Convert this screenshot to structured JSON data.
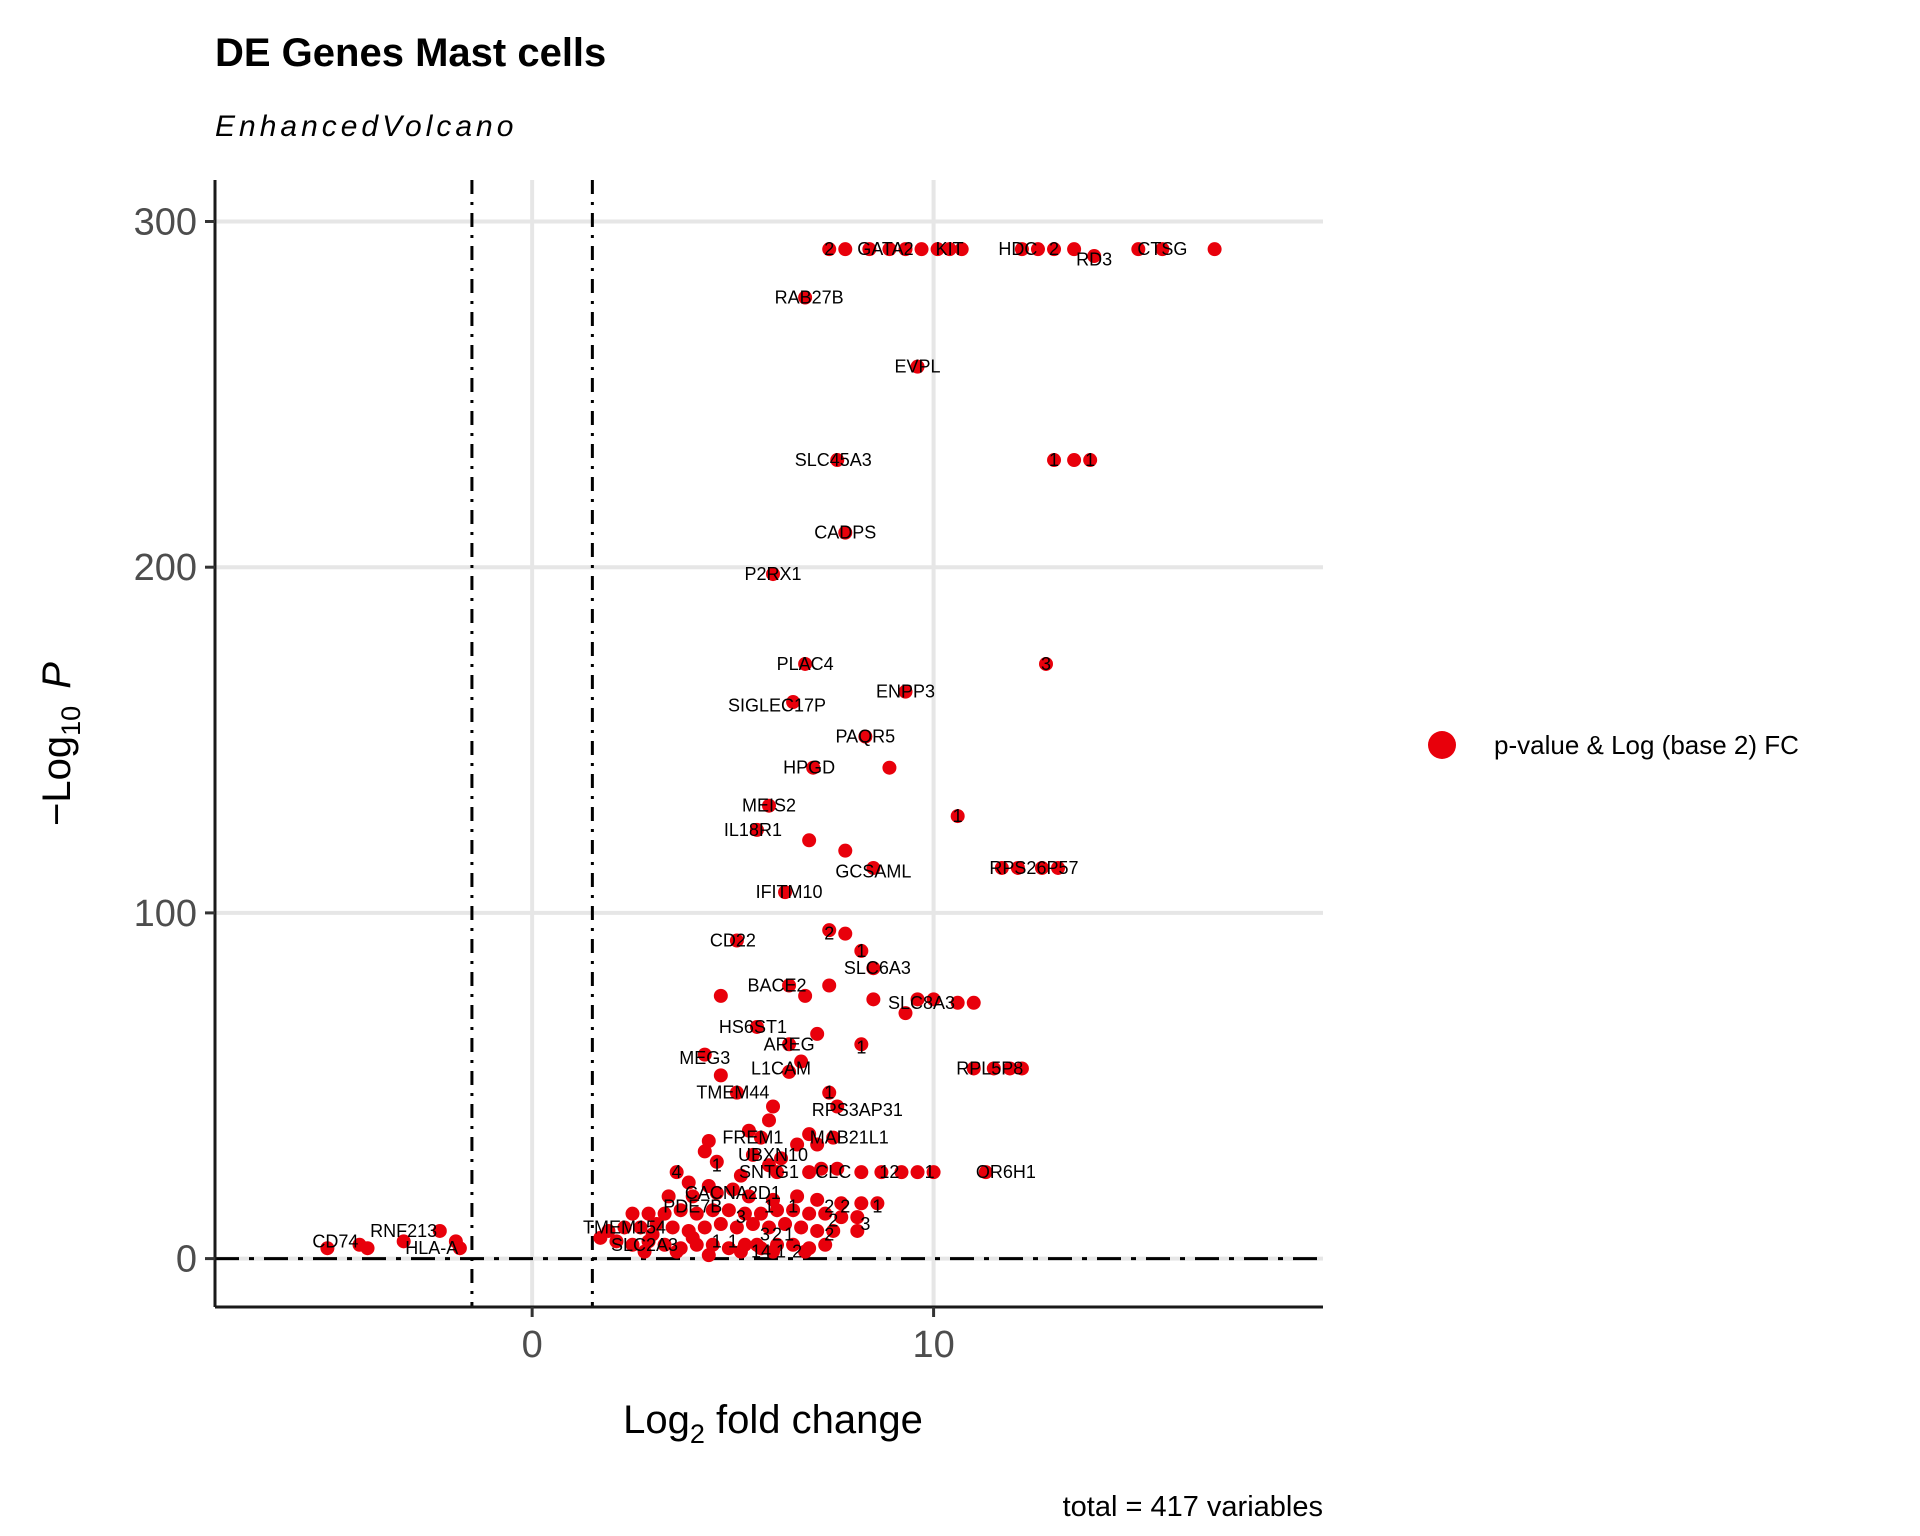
{
  "chart_data": {
    "type": "scatter",
    "title": "DE Genes Mast cells",
    "subtitle": "EnhancedVolcano",
    "xlabel_prefix": "Log",
    "xlabel_sub": "2",
    "xlabel_suffix": " fold change",
    "ylabel_prefix": "−Log",
    "ylabel_sub": "10",
    "ylabel_suffix": "P",
    "caption": "total = 417 variables",
    "xlim": [
      -7.9,
      19.7
    ],
    "ylim": [
      -14,
      312
    ],
    "x_ticks": [
      0,
      10
    ],
    "y_ticks": [
      0,
      100,
      200,
      300
    ],
    "fc_cutoff": 1.5,
    "p_cutoff_log10": 0,
    "grid": true,
    "legend_position": "right",
    "legend": [
      {
        "label": "p-value & Log (base 2) FC",
        "color": "#e8000b"
      }
    ],
    "series": [
      {
        "name": "p-value & Log (base 2) FC",
        "color": "#e8000b",
        "points": [
          [
            7.4,
            292
          ],
          [
            7.8,
            292
          ],
          [
            8.4,
            292
          ],
          [
            8.9,
            292
          ],
          [
            9.3,
            292
          ],
          [
            9.7,
            292
          ],
          [
            10.1,
            292
          ],
          [
            10.4,
            292
          ],
          [
            10.7,
            292
          ],
          [
            12.2,
            292
          ],
          [
            12.6,
            292
          ],
          [
            13.0,
            292
          ],
          [
            13.5,
            292
          ],
          [
            14.0,
            290
          ],
          [
            15.1,
            292
          ],
          [
            15.7,
            292
          ],
          [
            17.0,
            292
          ],
          [
            6.8,
            278
          ],
          [
            9.6,
            258
          ],
          [
            7.6,
            231
          ],
          [
            13.0,
            231
          ],
          [
            13.5,
            231
          ],
          [
            13.9,
            231
          ],
          [
            7.8,
            210
          ],
          [
            6.0,
            198
          ],
          [
            6.8,
            172
          ],
          [
            12.8,
            172
          ],
          [
            9.3,
            164
          ],
          [
            6.5,
            161
          ],
          [
            8.3,
            151
          ],
          [
            7.0,
            142
          ],
          [
            8.9,
            142
          ],
          [
            5.9,
            131
          ],
          [
            10.6,
            128
          ],
          [
            5.6,
            124
          ],
          [
            6.9,
            121
          ],
          [
            7.8,
            118
          ],
          [
            8.5,
            113
          ],
          [
            11.7,
            113
          ],
          [
            12.1,
            113
          ],
          [
            12.7,
            113
          ],
          [
            13.1,
            113
          ],
          [
            6.3,
            106
          ],
          [
            5.1,
            92
          ],
          [
            7.4,
            95
          ],
          [
            7.8,
            94
          ],
          [
            8.2,
            89
          ],
          [
            8.5,
            84
          ],
          [
            6.4,
            79
          ],
          [
            7.4,
            79
          ],
          [
            4.7,
            76
          ],
          [
            6.8,
            76
          ],
          [
            8.5,
            75
          ],
          [
            9.6,
            75
          ],
          [
            10.0,
            75
          ],
          [
            10.6,
            74
          ],
          [
            11.0,
            74
          ],
          [
            9.3,
            71
          ],
          [
            5.6,
            67
          ],
          [
            7.1,
            65
          ],
          [
            6.4,
            62
          ],
          [
            8.2,
            62
          ],
          [
            4.3,
            59
          ],
          [
            6.7,
            57
          ],
          [
            6.4,
            54
          ],
          [
            4.7,
            53
          ],
          [
            11.0,
            55
          ],
          [
            11.5,
            55
          ],
          [
            11.9,
            55
          ],
          [
            12.2,
            55
          ],
          [
            5.1,
            48
          ],
          [
            7.4,
            48
          ],
          [
            6.0,
            44
          ],
          [
            7.6,
            44
          ],
          [
            5.9,
            40
          ],
          [
            5.4,
            37
          ],
          [
            5.7,
            35
          ],
          [
            6.9,
            36
          ],
          [
            7.5,
            35
          ],
          [
            4.4,
            34
          ],
          [
            6.6,
            33
          ],
          [
            7.1,
            33
          ],
          [
            4.3,
            31
          ],
          [
            5.5,
            30
          ],
          [
            6.2,
            29
          ],
          [
            4.6,
            28
          ],
          [
            5.9,
            27
          ],
          [
            7.2,
            26
          ],
          [
            7.6,
            26
          ],
          [
            3.6,
            25
          ],
          [
            5.2,
            24
          ],
          [
            6.1,
            25
          ],
          [
            6.9,
            25
          ],
          [
            8.2,
            25
          ],
          [
            8.7,
            25
          ],
          [
            9.2,
            25
          ],
          [
            9.6,
            25
          ],
          [
            10.0,
            25
          ],
          [
            11.3,
            25
          ],
          [
            3.9,
            22
          ],
          [
            4.4,
            21
          ],
          [
            5.0,
            20
          ],
          [
            3.4,
            18
          ],
          [
            4.0,
            18
          ],
          [
            4.6,
            19
          ],
          [
            5.4,
            18
          ],
          [
            6.0,
            17
          ],
          [
            6.6,
            18
          ],
          [
            7.1,
            17
          ],
          [
            7.7,
            16
          ],
          [
            8.2,
            16
          ],
          [
            8.6,
            16
          ],
          [
            2.5,
            13
          ],
          [
            2.9,
            13
          ],
          [
            3.3,
            13
          ],
          [
            3.7,
            14
          ],
          [
            4.1,
            13
          ],
          [
            4.5,
            14
          ],
          [
            4.9,
            14
          ],
          [
            5.3,
            13
          ],
          [
            5.7,
            13
          ],
          [
            6.1,
            14
          ],
          [
            6.5,
            14
          ],
          [
            6.9,
            13
          ],
          [
            7.3,
            13
          ],
          [
            7.7,
            12
          ],
          [
            8.1,
            12
          ],
          [
            1.9,
            8
          ],
          [
            2.3,
            9
          ],
          [
            2.7,
            9
          ],
          [
            3.1,
            10
          ],
          [
            3.5,
            9
          ],
          [
            3.9,
            8
          ],
          [
            4.3,
            9
          ],
          [
            4.7,
            10
          ],
          [
            5.1,
            9
          ],
          [
            5.5,
            10
          ],
          [
            5.9,
            9
          ],
          [
            6.3,
            10
          ],
          [
            6.7,
            9
          ],
          [
            7.1,
            8
          ],
          [
            7.5,
            8
          ],
          [
            8.1,
            8
          ],
          [
            1.7,
            6
          ],
          [
            2.1,
            5
          ],
          [
            2.5,
            4
          ],
          [
            2.9,
            5
          ],
          [
            3.3,
            4
          ],
          [
            3.7,
            3
          ],
          [
            4.1,
            4
          ],
          [
            4.5,
            4
          ],
          [
            4.9,
            3
          ],
          [
            5.3,
            4
          ],
          [
            5.7,
            3
          ],
          [
            6.1,
            4
          ],
          [
            6.5,
            4
          ],
          [
            6.9,
            3
          ],
          [
            7.3,
            4
          ],
          [
            2.8,
            2
          ],
          [
            3.6,
            2
          ],
          [
            4.4,
            1
          ],
          [
            5.2,
            2
          ],
          [
            6.0,
            2
          ],
          [
            6.8,
            2
          ],
          [
            5.6,
            4
          ],
          [
            4.0,
            6
          ],
          [
            3.0,
            7
          ],
          [
            -5.1,
            3
          ],
          [
            -4.3,
            4
          ],
          [
            -4.1,
            3
          ],
          [
            -3.2,
            5
          ],
          [
            -2.3,
            8
          ],
          [
            -1.9,
            5
          ],
          [
            -1.8,
            3
          ]
        ]
      }
    ],
    "labels": [
      {
        "text": "2",
        "x": 7.4,
        "y": 292
      },
      {
        "text": "GATA2",
        "x": 8.8,
        "y": 292
      },
      {
        "text": "KIT",
        "x": 10.4,
        "y": 292
      },
      {
        "text": "HDC",
        "x": 12.1,
        "y": 292
      },
      {
        "text": "2",
        "x": 13.0,
        "y": 292
      },
      {
        "text": "RD3",
        "x": 14.0,
        "y": 289
      },
      {
        "text": "CTSG",
        "x": 15.7,
        "y": 292
      },
      {
        "text": "RAB27B",
        "x": 6.9,
        "y": 278
      },
      {
        "text": "EVPL",
        "x": 9.6,
        "y": 258
      },
      {
        "text": "SLC45A3",
        "x": 7.5,
        "y": 231
      },
      {
        "text": "1",
        "x": 13.0,
        "y": 231
      },
      {
        "text": "1",
        "x": 13.9,
        "y": 231
      },
      {
        "text": "CADPS",
        "x": 7.8,
        "y": 210
      },
      {
        "text": "P2RX1",
        "x": 6.0,
        "y": 198
      },
      {
        "text": "PLAC4",
        "x": 6.8,
        "y": 172
      },
      {
        "text": "3",
        "x": 12.8,
        "y": 172
      },
      {
        "text": "ENPP3",
        "x": 9.3,
        "y": 164
      },
      {
        "text": "SIGLEC17P",
        "x": 6.1,
        "y": 160
      },
      {
        "text": "PAQR5",
        "x": 8.3,
        "y": 151
      },
      {
        "text": "HPGD",
        "x": 6.9,
        "y": 142
      },
      {
        "text": "MEIS2",
        "x": 5.9,
        "y": 131
      },
      {
        "text": "1",
        "x": 10.6,
        "y": 128
      },
      {
        "text": "IL18R1",
        "x": 5.5,
        "y": 124
      },
      {
        "text": "GCSAML",
        "x": 8.5,
        "y": 112
      },
      {
        "text": "RPS26P57",
        "x": 12.5,
        "y": 113
      },
      {
        "text": "IFITM10",
        "x": 6.4,
        "y": 106
      },
      {
        "text": "CD22",
        "x": 5.0,
        "y": 92
      },
      {
        "text": "2",
        "x": 7.4,
        "y": 94
      },
      {
        "text": "1",
        "x": 8.2,
        "y": 89
      },
      {
        "text": "SLC6A3",
        "x": 8.6,
        "y": 84
      },
      {
        "text": "BACE2",
        "x": 6.1,
        "y": 79
      },
      {
        "text": "SLC8A3",
        "x": 9.7,
        "y": 74
      },
      {
        "text": "HS6ST1",
        "x": 5.5,
        "y": 67
      },
      {
        "text": "AREG",
        "x": 6.4,
        "y": 62
      },
      {
        "text": "1",
        "x": 8.2,
        "y": 61
      },
      {
        "text": "MEG3",
        "x": 4.3,
        "y": 58
      },
      {
        "text": "L1CAM",
        "x": 6.2,
        "y": 55
      },
      {
        "text": "RPL5P8",
        "x": 11.4,
        "y": 55
      },
      {
        "text": "TMEM44",
        "x": 5.0,
        "y": 48
      },
      {
        "text": "1",
        "x": 7.4,
        "y": 48
      },
      {
        "text": "RPS3AP31",
        "x": 8.1,
        "y": 43
      },
      {
        "text": "FREM1",
        "x": 5.5,
        "y": 35
      },
      {
        "text": "MAB21L1",
        "x": 7.9,
        "y": 35
      },
      {
        "text": "UBXN10",
        "x": 6.0,
        "y": 30
      },
      {
        "text": "1",
        "x": 4.6,
        "y": 27
      },
      {
        "text": "4",
        "x": 3.6,
        "y": 25
      },
      {
        "text": "SNTG1",
        "x": 5.9,
        "y": 25
      },
      {
        "text": "CLC",
        "x": 7.5,
        "y": 25
      },
      {
        "text": "12",
        "x": 8.9,
        "y": 25
      },
      {
        "text": "1",
        "x": 9.9,
        "y": 25
      },
      {
        "text": "OR6H1",
        "x": 11.8,
        "y": 25
      },
      {
        "text": "CACNA2D1",
        "x": 5.0,
        "y": 19
      },
      {
        "text": "PDE7B",
        "x": 4.0,
        "y": 15
      },
      {
        "text": "1",
        "x": 5.9,
        "y": 15
      },
      {
        "text": "1",
        "x": 6.5,
        "y": 15
      },
      {
        "text": "2",
        "x": 7.4,
        "y": 15
      },
      {
        "text": "2",
        "x": 7.8,
        "y": 15
      },
      {
        "text": "1",
        "x": 8.6,
        "y": 15
      },
      {
        "text": "3",
        "x": 5.2,
        "y": 12
      },
      {
        "text": "2",
        "x": 7.5,
        "y": 11
      },
      {
        "text": "3",
        "x": 8.3,
        "y": 10
      },
      {
        "text": "TMEM154",
        "x": 2.3,
        "y": 9
      },
      {
        "text": "3",
        "x": 5.8,
        "y": 7
      },
      {
        "text": "2",
        "x": 6.1,
        "y": 7
      },
      {
        "text": "1",
        "x": 6.4,
        "y": 7
      },
      {
        "text": "2",
        "x": 7.4,
        "y": 7
      },
      {
        "text": "1",
        "x": 4.6,
        "y": 5
      },
      {
        "text": "1",
        "x": 5.0,
        "y": 5
      },
      {
        "text": "SLC2A3",
        "x": 2.8,
        "y": 4
      },
      {
        "text": "14",
        "x": 5.7,
        "y": 2
      },
      {
        "text": "1",
        "x": 6.2,
        "y": 2
      },
      {
        "text": "2",
        "x": 6.6,
        "y": 2
      },
      {
        "text": "CD74",
        "x": -4.9,
        "y": 5
      },
      {
        "text": "RNF213",
        "x": -3.2,
        "y": 8
      },
      {
        "text": "HLA-A",
        "x": -2.5,
        "y": 3
      }
    ]
  }
}
